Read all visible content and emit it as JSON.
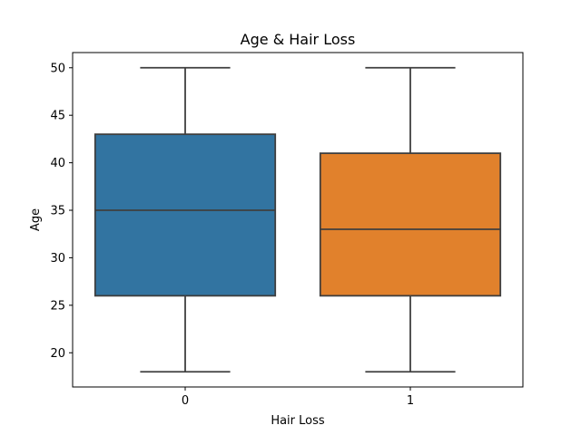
{
  "chart_data": {
    "type": "box",
    "title": "Age & Hair Loss",
    "xlabel": "Hair Loss",
    "ylabel": "Age",
    "categories": [
      "0",
      "1"
    ],
    "ylim": [
      16.4,
      51.6
    ],
    "yticks": [
      20,
      25,
      30,
      35,
      40,
      45,
      50
    ],
    "grid": false,
    "boxes": [
      {
        "category": "0",
        "min": 18,
        "q1": 26,
        "median": 35,
        "q3": 43,
        "max": 50,
        "color": "#3274a1"
      },
      {
        "category": "1",
        "min": 18,
        "q1": 26,
        "median": 33,
        "q3": 41,
        "max": 50,
        "color": "#e1812c"
      }
    ]
  }
}
